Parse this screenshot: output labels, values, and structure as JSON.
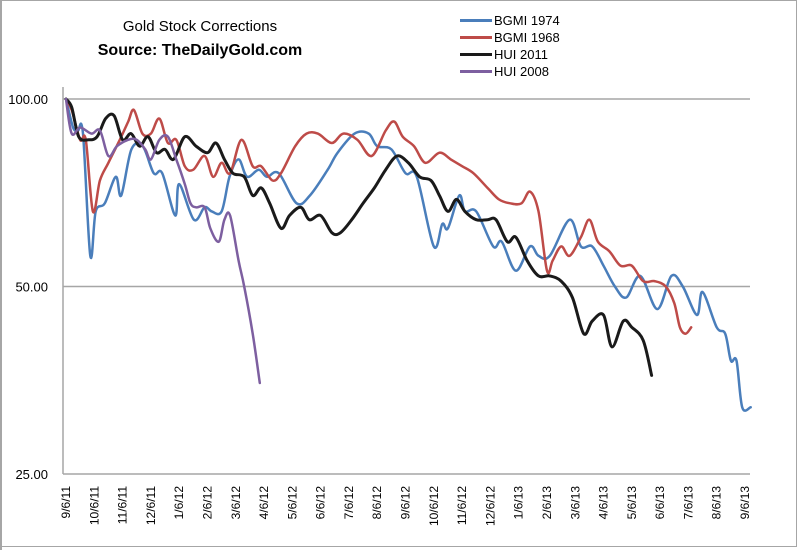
{
  "chart_data": {
    "type": "line",
    "title": "Gold Stock Corrections",
    "subtitle": "Source: TheDailyGold.com",
    "xlabel": "",
    "ylabel": "",
    "yscale": "log2",
    "ylim": [
      25,
      100
    ],
    "yticks": [
      {
        "value": 100,
        "label": "100.00"
      },
      {
        "value": 50,
        "label": "50.00"
      },
      {
        "value": 25,
        "label": "25.00"
      }
    ],
    "x_unit": "months since 9/6/11",
    "xlim": [
      0,
      24
    ],
    "xticks": [
      "9/6/11",
      "10/6/11",
      "11/6/11",
      "12/6/11",
      "1/6/12",
      "2/6/12",
      "3/6/12",
      "4/6/12",
      "5/6/12",
      "6/6/12",
      "7/6/12",
      "8/6/12",
      "9/6/12",
      "10/6/12",
      "11/6/12",
      "12/6/12",
      "1/6/13",
      "2/6/13",
      "3/6/13",
      "4/6/13",
      "5/6/13",
      "6/6/13",
      "7/6/13",
      "8/6/13",
      "9/6/13"
    ],
    "grid": "horizontal",
    "legend_position": "top-right",
    "series": [
      {
        "name": "BGMI 1974",
        "color": "#4a7ebb",
        "points": [
          [
            0,
            100
          ],
          [
            0.25,
            90
          ],
          [
            0.42,
            89
          ],
          [
            0.6,
            88
          ],
          [
            0.86,
            56
          ],
          [
            1.05,
            66
          ],
          [
            1.37,
            68
          ],
          [
            1.76,
            75
          ],
          [
            1.95,
            70
          ],
          [
            2.31,
            83
          ],
          [
            2.71,
            84
          ],
          [
            3.1,
            76
          ],
          [
            3.4,
            76
          ],
          [
            3.86,
            65
          ],
          [
            4.0,
            73
          ],
          [
            4.52,
            64
          ],
          [
            4.9,
            67
          ],
          [
            5.15,
            66
          ],
          [
            5.5,
            66
          ],
          [
            5.78,
            75
          ],
          [
            6.1,
            80
          ],
          [
            6.4,
            75
          ],
          [
            6.81,
            77
          ],
          [
            7.1,
            75
          ],
          [
            7.52,
            76
          ],
          [
            8.15,
            68
          ],
          [
            8.62,
            70
          ],
          [
            9.25,
            77
          ],
          [
            9.6,
            82
          ],
          [
            10.2,
            88
          ],
          [
            10.7,
            88
          ],
          [
            11.0,
            84
          ],
          [
            11.5,
            83
          ],
          [
            12.0,
            76
          ],
          [
            12.4,
            75
          ],
          [
            13.0,
            58
          ],
          [
            13.3,
            63
          ],
          [
            13.5,
            62
          ],
          [
            13.9,
            70
          ],
          [
            14.1,
            66
          ],
          [
            14.5,
            66
          ],
          [
            15.1,
            58
          ],
          [
            15.4,
            59
          ],
          [
            15.9,
            53
          ],
          [
            16.4,
            58
          ],
          [
            16.7,
            56
          ],
          [
            17.1,
            56
          ],
          [
            17.8,
            64
          ],
          [
            18.2,
            58
          ],
          [
            18.6,
            58
          ],
          [
            19.0,
            54
          ],
          [
            19.4,
            50
          ],
          [
            19.8,
            48
          ],
          [
            20.3,
            52
          ],
          [
            20.9,
            46
          ],
          [
            21.4,
            52
          ],
          [
            21.8,
            50
          ],
          [
            22.3,
            45
          ],
          [
            22.5,
            49
          ],
          [
            23.0,
            43
          ],
          [
            23.3,
            42
          ],
          [
            23.5,
            38
          ],
          [
            23.7,
            38
          ],
          [
            23.9,
            32
          ],
          [
            24.2,
            32
          ]
        ]
      },
      {
        "name": "BGMI 1968",
        "color": "#be4b48",
        "points": [
          [
            0,
            100
          ],
          [
            0.2,
            96
          ],
          [
            0.5,
            86
          ],
          [
            0.7,
            86
          ],
          [
            0.95,
            66
          ],
          [
            1.2,
            74
          ],
          [
            1.5,
            79
          ],
          [
            1.9,
            86
          ],
          [
            2.2,
            92
          ],
          [
            2.4,
            96
          ],
          [
            2.7,
            88
          ],
          [
            3.0,
            88
          ],
          [
            3.3,
            93
          ],
          [
            3.6,
            85
          ],
          [
            3.9,
            86
          ],
          [
            4.2,
            78
          ],
          [
            4.5,
            77
          ],
          [
            4.9,
            81
          ],
          [
            5.2,
            75
          ],
          [
            5.5,
            79
          ],
          [
            5.8,
            76
          ],
          [
            6.2,
            86
          ],
          [
            6.6,
            78
          ],
          [
            6.9,
            78
          ],
          [
            7.3,
            74
          ],
          [
            7.6,
            76
          ],
          [
            8.1,
            84
          ],
          [
            8.5,
            88
          ],
          [
            8.9,
            88
          ],
          [
            9.4,
            85
          ],
          [
            9.8,
            88
          ],
          [
            10.3,
            86
          ],
          [
            10.8,
            81
          ],
          [
            11.3,
            89
          ],
          [
            11.6,
            92
          ],
          [
            11.9,
            87
          ],
          [
            12.3,
            84
          ],
          [
            12.7,
            79
          ],
          [
            13.2,
            82
          ],
          [
            13.6,
            80
          ],
          [
            14.0,
            78
          ],
          [
            14.4,
            76
          ],
          [
            14.9,
            72
          ],
          [
            15.3,
            69
          ],
          [
            15.7,
            68
          ],
          [
            16.1,
            68
          ],
          [
            16.4,
            71
          ],
          [
            16.7,
            66
          ],
          [
            17.0,
            53
          ],
          [
            17.2,
            55
          ],
          [
            17.5,
            58
          ],
          [
            17.8,
            56
          ],
          [
            18.2,
            60
          ],
          [
            18.5,
            64
          ],
          [
            18.8,
            59
          ],
          [
            19.2,
            57
          ],
          [
            19.6,
            54
          ],
          [
            20.0,
            54
          ],
          [
            20.4,
            51
          ],
          [
            20.8,
            51
          ],
          [
            21.2,
            50
          ],
          [
            21.5,
            47
          ],
          [
            21.7,
            43
          ],
          [
            21.9,
            42
          ],
          [
            22.1,
            43
          ]
        ]
      },
      {
        "name": "HUI 2011",
        "color": "#1a1a1a",
        "points": [
          [
            0,
            100
          ],
          [
            0.2,
            97
          ],
          [
            0.45,
            87
          ],
          [
            0.8,
            86
          ],
          [
            1.1,
            87
          ],
          [
            1.4,
            93
          ],
          [
            1.7,
            94
          ],
          [
            2.0,
            86
          ],
          [
            2.3,
            88
          ],
          [
            2.6,
            84
          ],
          [
            2.9,
            87
          ],
          [
            3.2,
            82
          ],
          [
            3.5,
            83
          ],
          [
            3.8,
            80
          ],
          [
            4.2,
            87
          ],
          [
            4.6,
            84
          ],
          [
            5.0,
            82
          ],
          [
            5.3,
            85
          ],
          [
            5.6,
            80
          ],
          [
            5.9,
            76
          ],
          [
            6.3,
            75
          ],
          [
            6.6,
            70
          ],
          [
            6.9,
            72
          ],
          [
            7.2,
            68
          ],
          [
            7.6,
            62
          ],
          [
            7.9,
            65
          ],
          [
            8.3,
            67
          ],
          [
            8.6,
            64
          ],
          [
            9.0,
            65
          ],
          [
            9.4,
            61
          ],
          [
            9.7,
            61
          ],
          [
            10.1,
            64
          ],
          [
            10.5,
            68
          ],
          [
            10.9,
            72
          ],
          [
            11.3,
            77
          ],
          [
            11.7,
            81
          ],
          [
            12.1,
            79
          ],
          [
            12.5,
            75
          ],
          [
            12.9,
            74
          ],
          [
            13.2,
            70
          ],
          [
            13.5,
            66
          ],
          [
            13.8,
            69
          ],
          [
            14.1,
            66
          ],
          [
            14.5,
            64
          ],
          [
            14.9,
            64
          ],
          [
            15.2,
            64
          ],
          [
            15.6,
            59
          ],
          [
            15.9,
            60
          ],
          [
            16.3,
            55
          ],
          [
            16.7,
            52
          ],
          [
            17.1,
            52
          ],
          [
            17.5,
            51
          ],
          [
            17.9,
            48
          ],
          [
            18.3,
            42
          ],
          [
            18.6,
            44
          ],
          [
            19.0,
            45
          ],
          [
            19.3,
            40
          ],
          [
            19.7,
            44
          ],
          [
            20.0,
            43
          ],
          [
            20.4,
            41
          ],
          [
            20.7,
            36
          ]
        ]
      },
      {
        "name": "HUI 2008",
        "color": "#7d5fa0",
        "points": [
          [
            0,
            100
          ],
          [
            0.2,
            88
          ],
          [
            0.5,
            90
          ],
          [
            0.9,
            88
          ],
          [
            1.2,
            89
          ],
          [
            1.5,
            81
          ],
          [
            1.8,
            84
          ],
          [
            2.2,
            86
          ],
          [
            2.5,
            86
          ],
          [
            2.8,
            83
          ],
          [
            3.0,
            80
          ],
          [
            3.3,
            86
          ],
          [
            3.6,
            87
          ],
          [
            3.9,
            80
          ],
          [
            4.2,
            73
          ],
          [
            4.4,
            68
          ],
          [
            4.6,
            67
          ],
          [
            4.9,
            67
          ],
          [
            5.1,
            62
          ],
          [
            5.4,
            59
          ],
          [
            5.6,
            64
          ],
          [
            5.8,
            65
          ],
          [
            6.1,
            55
          ],
          [
            6.3,
            50
          ],
          [
            6.6,
            42
          ],
          [
            6.85,
            35
          ]
        ]
      }
    ]
  }
}
